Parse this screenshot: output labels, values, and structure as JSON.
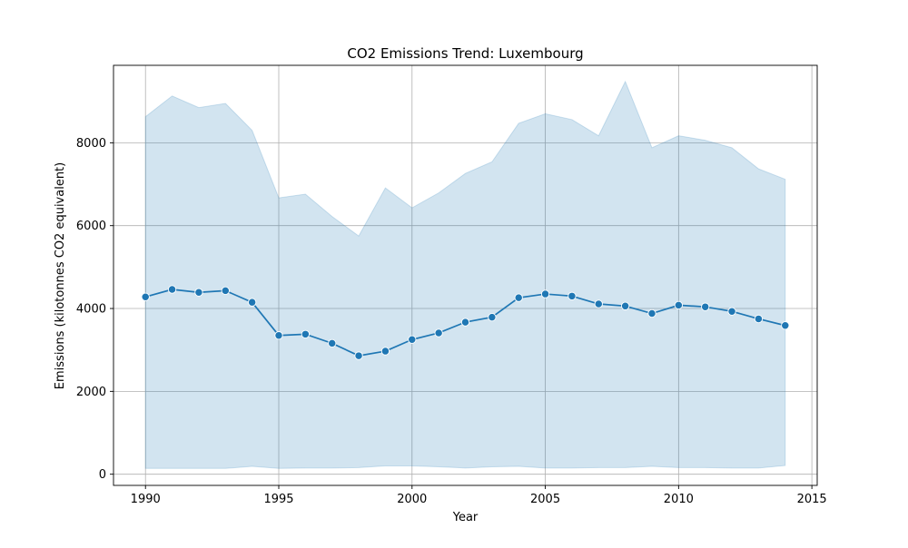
{
  "chart_data": {
    "type": "line",
    "title": "CO2 Emissions Trend: Luxembourg",
    "xlabel": "Year",
    "ylabel": "Emissions (kilotonnes CO2 equivalent)",
    "xlim": [
      1988.8,
      2015.2
    ],
    "ylim": [
      -270,
      9870
    ],
    "x_ticks": [
      1990,
      1995,
      2000,
      2005,
      2010,
      2015
    ],
    "y_ticks": [
      0,
      2000,
      4000,
      6000,
      8000
    ],
    "grid": true,
    "x": [
      1990,
      1991,
      1992,
      1993,
      1994,
      1995,
      1996,
      1997,
      1998,
      1999,
      2000,
      2001,
      2002,
      2003,
      2004,
      2005,
      2006,
      2007,
      2008,
      2009,
      2010,
      2011,
      2012,
      2013,
      2014
    ],
    "series": [
      {
        "values": [
          4280,
          4460,
          4390,
          4430,
          4150,
          3350,
          3380,
          3160,
          2860,
          2970,
          3250,
          3410,
          3670,
          3790,
          4260,
          4350,
          4300,
          4110,
          4060,
          3880,
          4080,
          4040,
          3930,
          3750,
          3590
        ]
      }
    ],
    "band_upper": [
      8630,
      9130,
      8850,
      8950,
      8300,
      6670,
      6760,
      6220,
      5750,
      6910,
      6430,
      6790,
      7260,
      7540,
      8470,
      8700,
      8560,
      8170,
      9480,
      7880,
      8170,
      8060,
      7880,
      7370,
      7120
    ],
    "band_lower": [
      140,
      140,
      140,
      140,
      190,
      140,
      150,
      150,
      160,
      200,
      200,
      180,
      150,
      180,
      190,
      150,
      150,
      160,
      160,
      190,
      160,
      160,
      150,
      150,
      210
    ],
    "colors": {
      "line": "#1f77b4",
      "band": "#1f77b4",
      "grid": "#b0b0b0"
    }
  }
}
